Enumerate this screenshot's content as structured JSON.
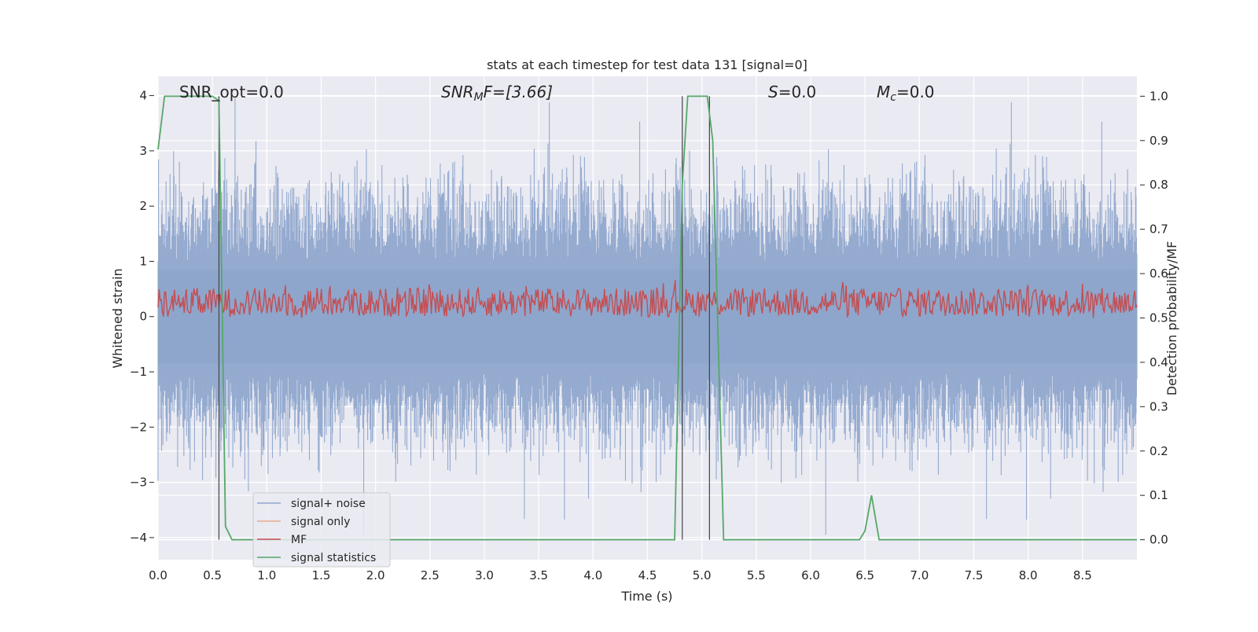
{
  "chart_data": {
    "type": "line",
    "title": "stats at each timestep for test data 131 [signal=0]",
    "xlabel": "Time (s)",
    "ylabel_left": "Whitened strain",
    "ylabel_right": "Detection probability/MF",
    "xlim": [
      0.0,
      9.0
    ],
    "ylim_left": [
      -4.4,
      4.35
    ],
    "ylim_right": [
      -0.045,
      1.045
    ],
    "x_ticks": [
      "0.0",
      "0.5",
      "1.0",
      "1.5",
      "2.0",
      "2.5",
      "3.0",
      "3.5",
      "4.0",
      "4.5",
      "5.0",
      "5.5",
      "6.0",
      "6.5",
      "7.0",
      "7.5",
      "8.0",
      "8.5"
    ],
    "y_ticks_left": [
      "4",
      "3",
      "2",
      "1",
      "0",
      "−1",
      "−2",
      "−3",
      "−4"
    ],
    "y_ticks_right": [
      "1.0",
      "0.9",
      "0.8",
      "0.7",
      "0.6",
      "0.5",
      "0.4",
      "0.3",
      "0.2",
      "0.1",
      "0.0"
    ],
    "grid": true,
    "legend_position": "lower-left",
    "annotations": {
      "snr_opt": "SNR_opt=0.0",
      "snr_mf_sym": "SNR",
      "snr_mf_sub": "M",
      "snr_mf_rest": "F=[3.66]",
      "s_sym": "S",
      "s_rest": "=0.0",
      "mc_sym": "M",
      "mc_sub": "c",
      "mc_rest": "=0.0"
    },
    "series": [
      {
        "name": "signal+ noise",
        "color": "#8fa6cc",
        "axis": "left",
        "description_values": "whitened noise, range approx [-4, 4]"
      },
      {
        "name": "signal only",
        "color": "#e8a98c",
        "axis": "left",
        "values": []
      },
      {
        "name": "MF",
        "color": "#c44e52",
        "axis": "right",
        "range": [
          0.5,
          0.6
        ]
      },
      {
        "name": "signal statistics",
        "color": "#55a868",
        "axis": "right",
        "x": [
          0.0,
          0.06,
          0.5,
          0.56,
          0.62,
          0.68,
          4.75,
          4.82,
          4.87,
          5.05,
          5.1,
          5.2,
          6.45,
          6.5,
          6.56,
          6.63,
          6.7,
          9.0
        ],
        "y": [
          0.88,
          1.0,
          1.0,
          0.99,
          0.03,
          0.0,
          0.0,
          0.8,
          1.0,
          1.0,
          0.9,
          0.0,
          0.0,
          0.02,
          0.1,
          0.0,
          0.0,
          0.0
        ]
      }
    ],
    "vlines": [
      0.56,
      4.82,
      5.07
    ]
  }
}
